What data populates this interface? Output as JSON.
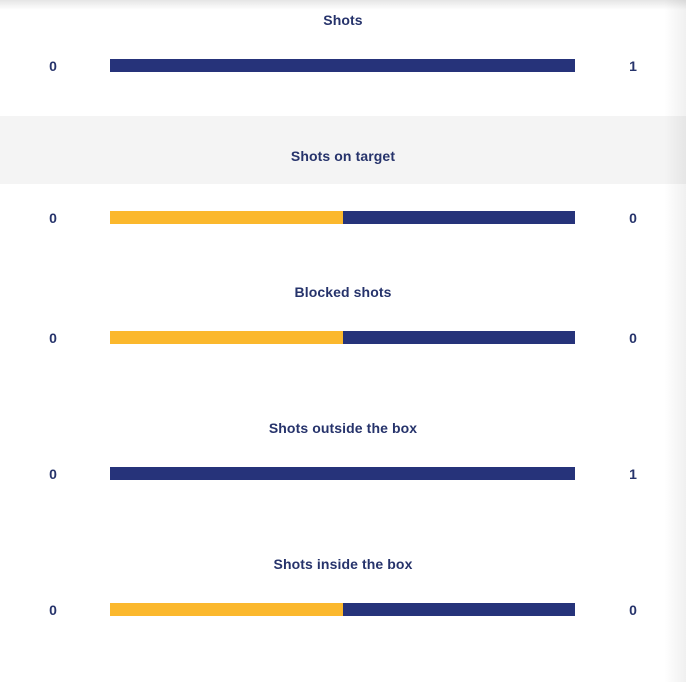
{
  "colors": {
    "home": "#fbb82d",
    "away": "#26337a",
    "label": "#26336b",
    "shaded_band": "#f4f4f4"
  },
  "stats": [
    {
      "label": "Shots",
      "home": "0",
      "away": "1",
      "home_share": 0.0
    },
    {
      "label": "Shots on target",
      "home": "0",
      "away": "0",
      "home_share": 0.5
    },
    {
      "label": "Blocked shots",
      "home": "0",
      "away": "0",
      "home_share": 0.5
    },
    {
      "label": "Shots outside the box",
      "home": "0",
      "away": "1",
      "home_share": 0.0
    },
    {
      "label": "Shots inside the box",
      "home": "0",
      "away": "0",
      "home_share": 0.5
    }
  ]
}
